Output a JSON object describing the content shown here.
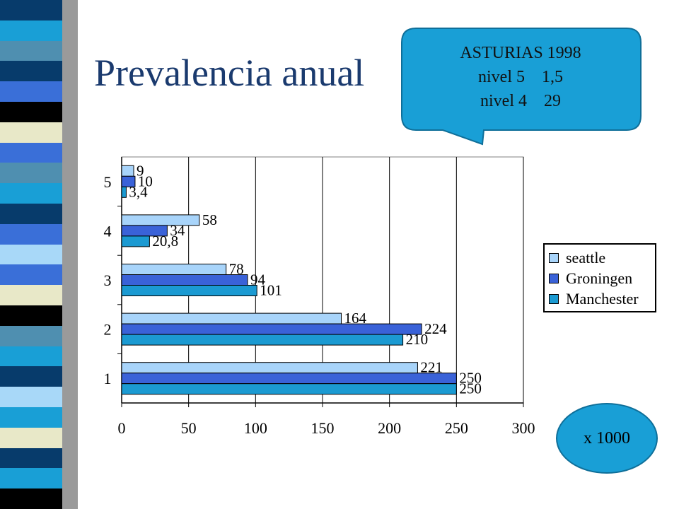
{
  "slide": {
    "title": "Prevalencia anual",
    "callout": {
      "lines": [
        "ASTURIAS 1998",
        "nivel 5    1,5",
        "nivel 4    29"
      ],
      "fill_color": "#199fd6"
    },
    "unit_badge": "x 1000",
    "stripe_colors": [
      "#073b6b",
      "#199fd6",
      "#4f8fb0",
      "#073b6b",
      "#3a6fd8",
      "#000000",
      "#e8e8c8",
      "#3a6fd8",
      "#4f8fb0",
      "#199fd6",
      "#073b6b",
      "#3a6fd8",
      "#a8d8f8",
      "#3a6fd8",
      "#e8e8c8",
      "#000000",
      "#4f8fb0",
      "#199fd6",
      "#073b6b",
      "#a8d8f8",
      "#199fd6",
      "#e8e8c8",
      "#073b6b",
      "#199fd6",
      "#000000"
    ]
  },
  "chart_data": {
    "type": "bar",
    "orientation": "horizontal",
    "categories": [
      "5",
      "4",
      "3",
      "2",
      "1"
    ],
    "series": [
      {
        "name": "seattle",
        "values": [
          9,
          58,
          78,
          164,
          221
        ],
        "labels": [
          "9",
          "58",
          "78",
          "164",
          "221"
        ],
        "color": "#a8d4fa"
      },
      {
        "name": "Groningen",
        "values": [
          10,
          34,
          94,
          224,
          250
        ],
        "labels": [
          "10",
          "34",
          "94",
          "224",
          "250"
        ],
        "color": "#3a62d8"
      },
      {
        "name": "Manchester",
        "values": [
          3.4,
          20.8,
          101,
          210,
          250
        ],
        "labels": [
          "3,4",
          "20,8",
          "101",
          "210",
          "250"
        ],
        "color": "#1b9ad2"
      }
    ],
    "x_ticks": [
      "0",
      "50",
      "100",
      "150",
      "200",
      "250",
      "300"
    ],
    "xlim": [
      0,
      300
    ],
    "grid": true,
    "legend_position": "right"
  }
}
